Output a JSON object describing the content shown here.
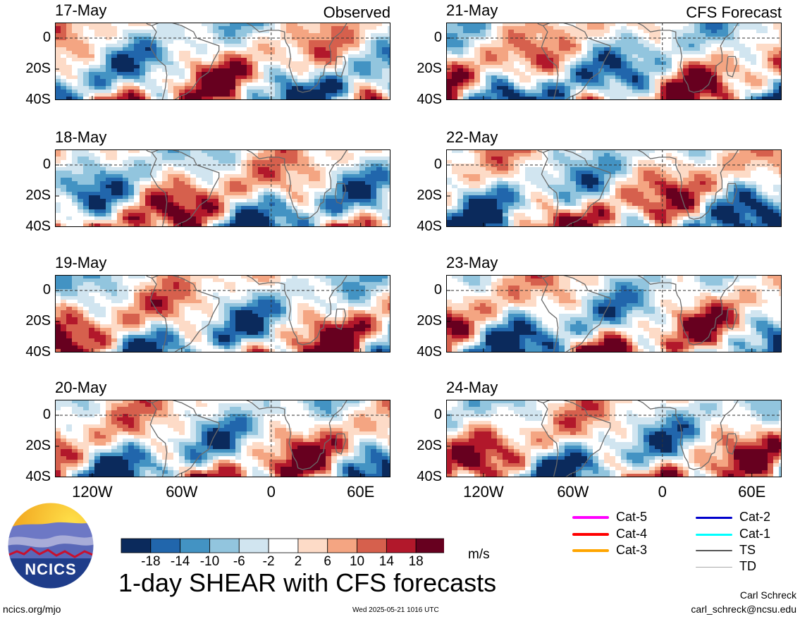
{
  "chart_data": {
    "type": "heatmap",
    "title": "1-day SHEAR with CFS forecasts",
    "variable": "SHEAR",
    "units": "m/s",
    "columns": [
      {
        "label": "Observed",
        "dates": [
          "17-May",
          "18-May",
          "19-May",
          "20-May"
        ]
      },
      {
        "label": "CFS Forecast",
        "dates": [
          "21-May",
          "22-May",
          "23-May",
          "24-May"
        ]
      }
    ],
    "y_ticks": [
      "0",
      "20S",
      "40S"
    ],
    "ylim": [
      -40,
      10
    ],
    "x_ticks": [
      "120W",
      "60W",
      "0",
      "60E"
    ],
    "xlim": [
      -145,
      80
    ],
    "colorbar": {
      "colors": [
        "#0b2a5c",
        "#2166ac",
        "#4393c3",
        "#92c5de",
        "#d1e5f0",
        "#ffffff",
        "#fddbc7",
        "#f4a582",
        "#d6604d",
        "#b2182b",
        "#67001f"
      ],
      "tick_labels": [
        "-18",
        "-14",
        "-10",
        "-6",
        "-2",
        "2",
        "6",
        "10",
        "14",
        "18"
      ]
    },
    "storm_legend": [
      {
        "label": "Cat-5",
        "color": "#ff00ff"
      },
      {
        "label": "Cat-4",
        "color": "#ff0000"
      },
      {
        "label": "Cat-3",
        "color": "#ffa500"
      },
      {
        "label": "Cat-2",
        "color": "#0000cc"
      },
      {
        "label": "Cat-1",
        "color": "#00ffff"
      },
      {
        "label": "TS",
        "color": "#555555"
      },
      {
        "label": "TD",
        "color": "#aaaaaa"
      }
    ]
  },
  "logo_text": "NCICS",
  "footer": {
    "left": "ncics.org/mjo",
    "timestamp": "Wed 2025-05-21 1016 UTC",
    "author": "Carl Schreck",
    "email": "carl_schreck@ncsu.edu"
  }
}
